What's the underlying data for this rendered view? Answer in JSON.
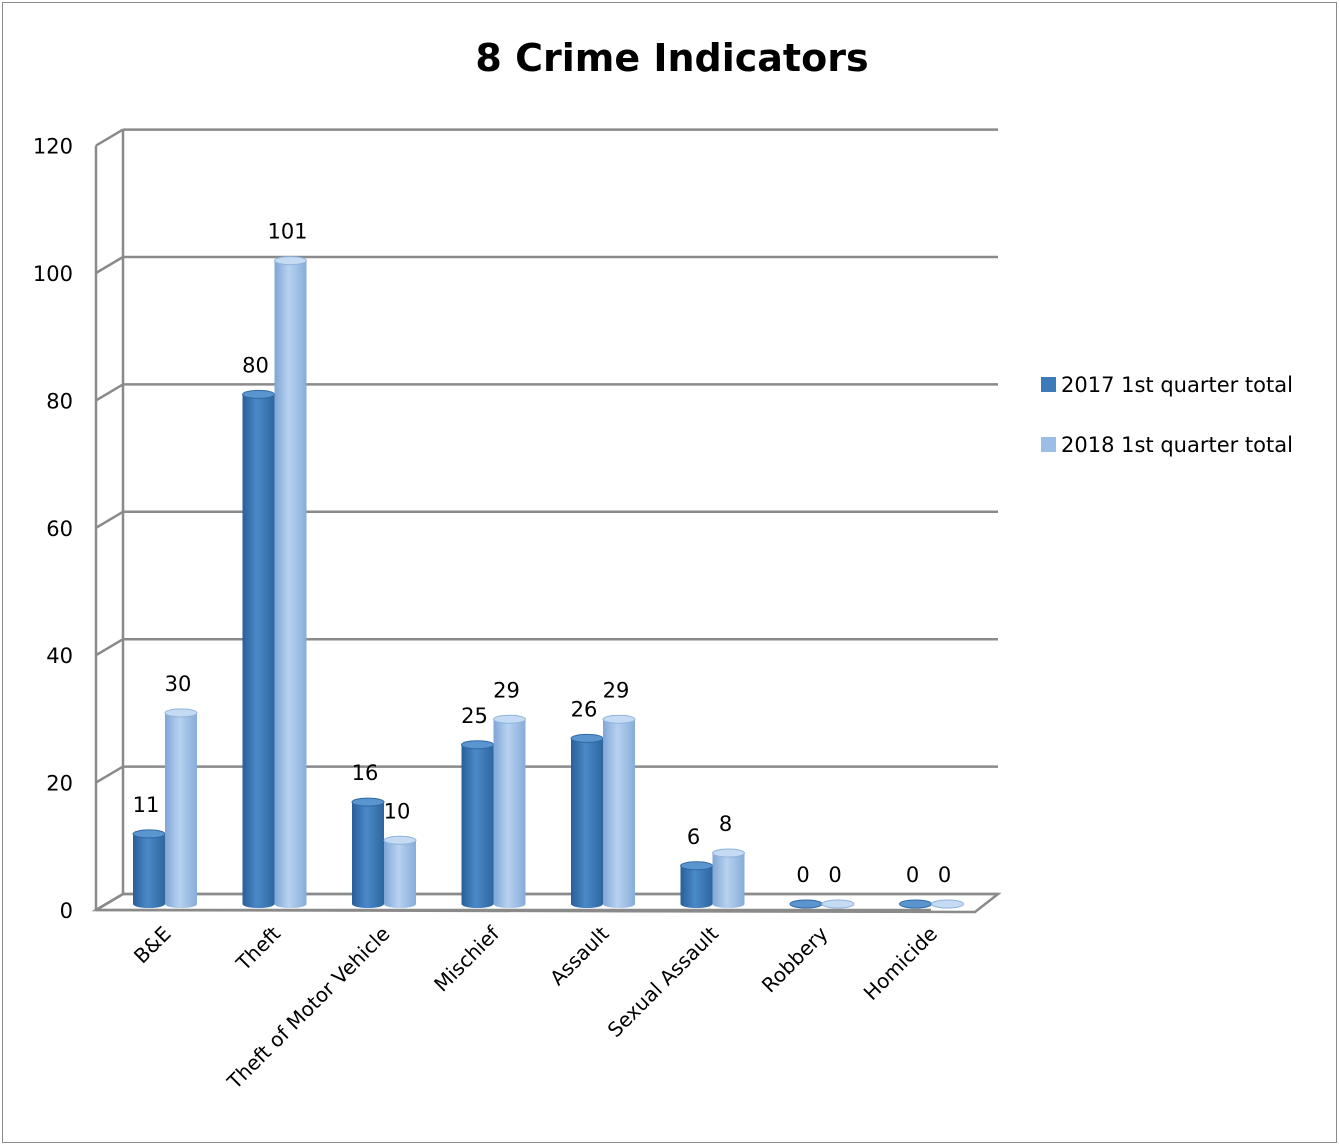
{
  "chart_data": {
    "type": "bar",
    "title": "8 Crime Indicators",
    "categories": [
      "B&E",
      "Theft",
      "Theft of Motor Vehicle",
      "Mischief",
      "Assault",
      "Sexual Assault",
      "Robbery",
      "Homicide"
    ],
    "series": [
      {
        "name": "2017 1st  quarter total",
        "values": [
          11,
          80,
          16,
          25,
          26,
          6,
          0,
          0
        ],
        "color": "#3d7ab8"
      },
      {
        "name": "2018 1st quarter total",
        "values": [
          30,
          101,
          10,
          29,
          29,
          8,
          0,
          0
        ],
        "color": "#9bbde6"
      }
    ],
    "y_ticks": [
      "0",
      "20",
      "40",
      "60",
      "80",
      "100",
      "120"
    ],
    "ylim": [
      0,
      120
    ],
    "xlabel": "",
    "ylabel": "",
    "grid": true,
    "legend": "right",
    "data_labels": true
  }
}
